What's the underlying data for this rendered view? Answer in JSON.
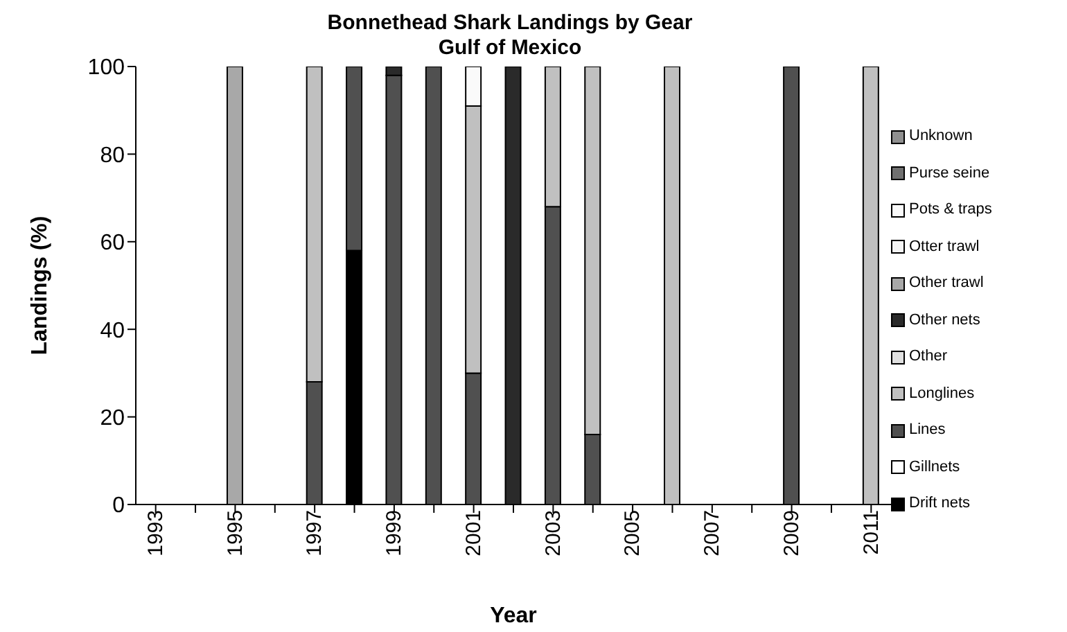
{
  "chart_data": {
    "type": "bar",
    "title": "Bonnethead Shark Landings by Gear\nGulf of Mexico",
    "xlabel": "Year",
    "ylabel": "Landings (%)",
    "categories": [
      "1993",
      null,
      "1995",
      null,
      "1997",
      null,
      "1999",
      null,
      "2001",
      null,
      "2003",
      null,
      "2005",
      null,
      "2007",
      null,
      "2009",
      null,
      "2011"
    ],
    "stacked": true,
    "ylim": [
      0,
      100
    ],
    "yticks": [
      0,
      20,
      40,
      60,
      80,
      100
    ],
    "grid": false,
    "legend": "right",
    "series": [
      {
        "name": "Drift nets",
        "color": "#000000",
        "values": [
          null,
          null,
          null,
          null,
          null,
          58,
          null,
          null,
          null,
          null,
          null,
          null,
          null,
          null,
          null,
          null,
          null,
          null,
          null
        ]
      },
      {
        "name": "Gillnets",
        "color": "#ffffff",
        "values": [
          null,
          null,
          null,
          null,
          null,
          null,
          null,
          null,
          null,
          null,
          null,
          null,
          null,
          null,
          null,
          null,
          null,
          null,
          null
        ]
      },
      {
        "name": "Lines",
        "color": "#505050",
        "values": [
          null,
          null,
          null,
          null,
          28,
          42,
          98,
          100,
          30,
          null,
          68,
          16,
          null,
          null,
          null,
          null,
          100,
          null,
          null
        ]
      },
      {
        "name": "Longlines",
        "color": "#c0c0c0",
        "values": [
          null,
          null,
          null,
          null,
          72,
          null,
          null,
          null,
          61,
          null,
          32,
          84,
          null,
          100,
          null,
          null,
          null,
          null,
          100
        ]
      },
      {
        "name": "Other",
        "color": "#e0e0e0",
        "values": [
          null,
          null,
          null,
          null,
          null,
          null,
          null,
          null,
          null,
          null,
          null,
          null,
          null,
          null,
          null,
          null,
          null,
          null,
          null
        ]
      },
      {
        "name": "Other nets",
        "color": "#2a2a2a",
        "values": [
          null,
          null,
          null,
          null,
          null,
          null,
          2,
          null,
          null,
          100,
          null,
          null,
          null,
          null,
          null,
          null,
          null,
          null,
          null
        ]
      },
      {
        "name": "Other trawl",
        "color": "#a8a8a8",
        "values": [
          null,
          null,
          100,
          null,
          null,
          null,
          null,
          null,
          null,
          null,
          null,
          null,
          null,
          null,
          null,
          null,
          null,
          null,
          null
        ]
      },
      {
        "name": "Otter trawl",
        "color": "#f4f4f4",
        "values": [
          null,
          null,
          null,
          null,
          null,
          null,
          null,
          null,
          null,
          null,
          null,
          null,
          null,
          null,
          null,
          null,
          null,
          null,
          null
        ]
      },
      {
        "name": "Pots & traps",
        "color": "#fafafa",
        "values": [
          null,
          null,
          null,
          null,
          null,
          null,
          null,
          null,
          9,
          null,
          null,
          null,
          null,
          null,
          null,
          null,
          null,
          null,
          null
        ]
      },
      {
        "name": "Purse seine",
        "color": "#707070",
        "values": [
          null,
          null,
          null,
          null,
          null,
          null,
          null,
          null,
          null,
          null,
          null,
          null,
          null,
          null,
          null,
          null,
          null,
          null,
          null
        ]
      },
      {
        "name": "Unknown",
        "color": "#909090",
        "values": [
          null,
          null,
          null,
          null,
          null,
          null,
          null,
          null,
          null,
          null,
          null,
          null,
          null,
          null,
          null,
          null,
          null,
          null,
          null
        ]
      }
    ]
  }
}
